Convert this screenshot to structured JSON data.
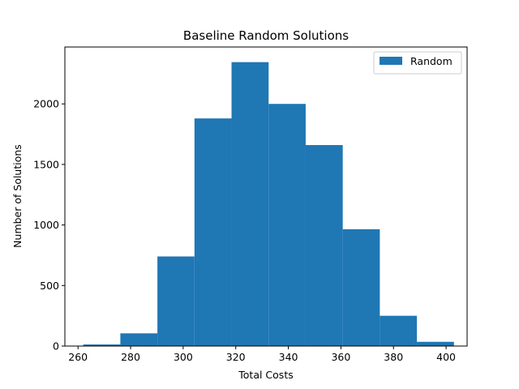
{
  "chart_data": {
    "type": "bar",
    "subtype": "histogram",
    "title": "Baseline Random Solutions",
    "xlabel": "Total Costs",
    "ylabel": "Number of Solutions",
    "bin_edges": [
      262,
      276.1,
      290.2,
      304.3,
      318.4,
      332.5,
      346.6,
      360.7,
      374.8,
      388.9,
      403
    ],
    "series": [
      {
        "name": "Random",
        "color": "#1f77b4",
        "values": [
          13,
          105,
          740,
          1880,
          2345,
          2000,
          1660,
          965,
          250,
          35
        ]
      }
    ],
    "xlim": [
      255,
      408
    ],
    "ylim": [
      0,
      2470
    ],
    "xticks": [
      260,
      280,
      300,
      320,
      340,
      360,
      380,
      400
    ],
    "yticks": [
      0,
      500,
      1000,
      1500,
      2000
    ],
    "legend_position": "top-right",
    "grid": false
  }
}
